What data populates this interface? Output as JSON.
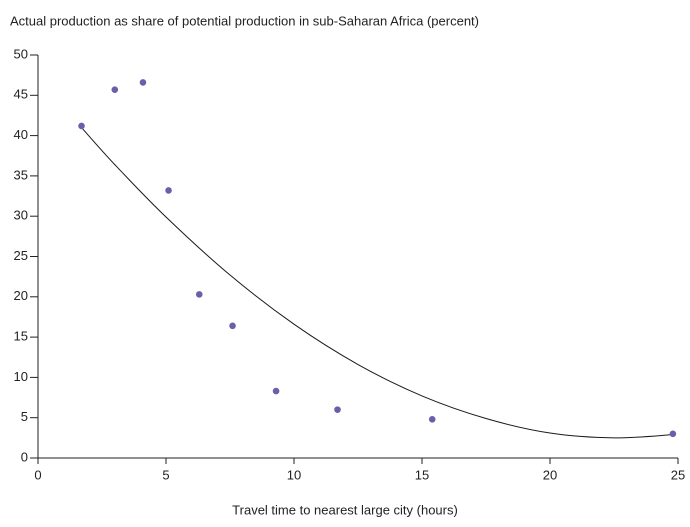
{
  "chart_data": {
    "type": "scatter",
    "title": "Actual production as share of potential production in sub-Saharan Africa (percent)",
    "x_label": "Travel time to nearest large city (hours)",
    "x": [
      1.7,
      3.0,
      4.1,
      5.1,
      6.3,
      7.6,
      9.3,
      11.7,
      15.4,
      24.8
    ],
    "values": [
      41.2,
      45.7,
      46.6,
      33.2,
      20.3,
      16.4,
      8.3,
      6.0,
      4.8,
      3.0
    ],
    "color": "#6a5fa8",
    "trend": {
      "x": [
        1.7,
        3,
        5,
        7.5,
        10,
        12.5,
        15,
        17.5,
        20,
        22.5,
        24.8
      ],
      "values": [
        41.0,
        36.4,
        29.9,
        22.7,
        16.6,
        11.6,
        7.7,
        4.9,
        3.1,
        2.5,
        2.9
      ],
      "color": "#1a1a1a"
    },
    "xlim": [
      0,
      25
    ],
    "xticks": [
      0,
      5,
      10,
      15,
      20,
      25
    ],
    "ylim": [
      0,
      50
    ],
    "yticks": [
      0,
      5,
      10,
      15,
      20,
      25,
      30,
      35,
      40,
      45,
      50
    ]
  }
}
